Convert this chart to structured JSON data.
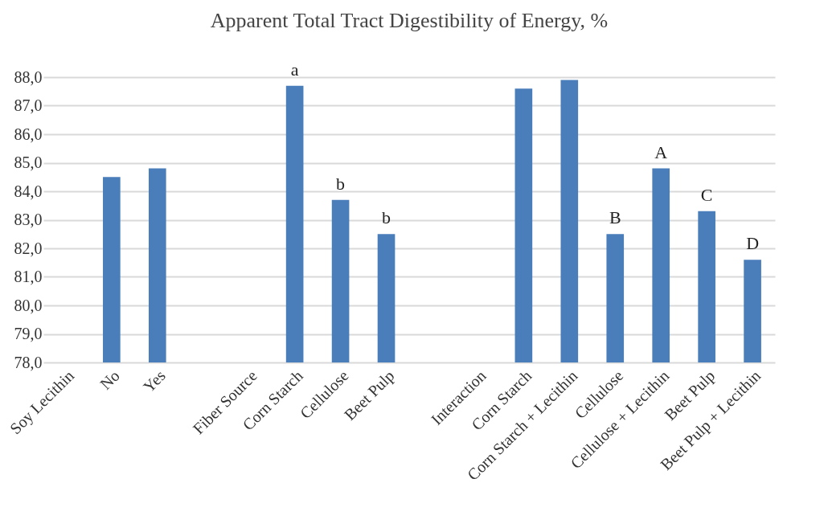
{
  "chart_data": {
    "type": "bar",
    "title": "Apparent Total Tract Digestibility of Energy, %",
    "categories": [
      "Soy Lecithin",
      "No",
      "Yes",
      null,
      "Fiber Source",
      "Corn Starch",
      "Cellulose",
      "Beet Pulp",
      null,
      "Interaction",
      "Corn Starch",
      "Corn Starch + Lecithin",
      "Cellulose",
      "Cellulose + Lecithin",
      "Beet Pulp",
      "Beet Pulp + Lecithin"
    ],
    "values": [
      null,
      84.5,
      84.8,
      null,
      null,
      87.7,
      83.7,
      82.5,
      null,
      null,
      87.6,
      87.9,
      82.5,
      84.8,
      83.3,
      81.6
    ],
    "value_labels": [
      null,
      null,
      null,
      null,
      null,
      "a",
      "b",
      "b",
      null,
      null,
      null,
      null,
      "B",
      "A",
      "C",
      "D"
    ],
    "color": "#4a7ebb",
    "ylim": [
      78,
      88
    ],
    "yticks": [
      {
        "value": 78,
        "label": "78,0"
      },
      {
        "value": 79,
        "label": "79,0"
      },
      {
        "value": 80,
        "label": "80,0"
      },
      {
        "value": 81,
        "label": "81,0"
      },
      {
        "value": 82,
        "label": "82,0"
      },
      {
        "value": 83,
        "label": "83,0"
      },
      {
        "value": 84,
        "label": "84,0"
      },
      {
        "value": 85,
        "label": "85,0"
      },
      {
        "value": 86,
        "label": "86,0"
      },
      {
        "value": 87,
        "label": "87,0"
      },
      {
        "value": 88,
        "label": "88,0"
      }
    ],
    "grid": "y"
  }
}
